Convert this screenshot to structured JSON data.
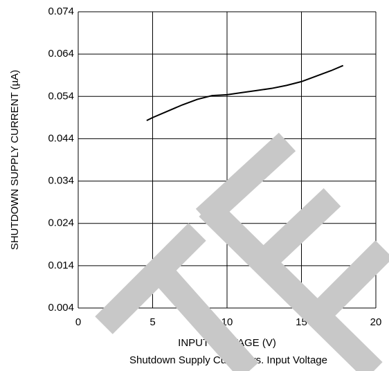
{
  "chart_data": {
    "type": "line",
    "caption": "Shutdown Supply Current vs. Input Voltage",
    "xlabel": "INPUT VOLTAGE (V)",
    "ylabel": "SHUTDOWN SUPPLY CURRENT (µA)",
    "x": [
      4.6,
      5,
      6,
      7,
      8,
      9,
      10,
      11,
      12,
      13,
      14,
      15,
      16,
      17,
      17.8
    ],
    "series": [
      {
        "name": "Shutdown Supply Current",
        "color": "#000000",
        "values": [
          0.0483,
          0.049,
          0.0505,
          0.052,
          0.0533,
          0.0542,
          0.0544,
          0.0549,
          0.0554,
          0.0559,
          0.0566,
          0.0575,
          0.0588,
          0.0601,
          0.0613
        ]
      }
    ],
    "xlim": [
      0,
      20
    ],
    "xticks": [
      0,
      5,
      10,
      15,
      20
    ],
    "ylim": [
      0.004,
      0.074
    ],
    "yticks": [
      0.004,
      0.014,
      0.024,
      0.034,
      0.044,
      0.054,
      0.064,
      0.074
    ],
    "grid": true
  }
}
